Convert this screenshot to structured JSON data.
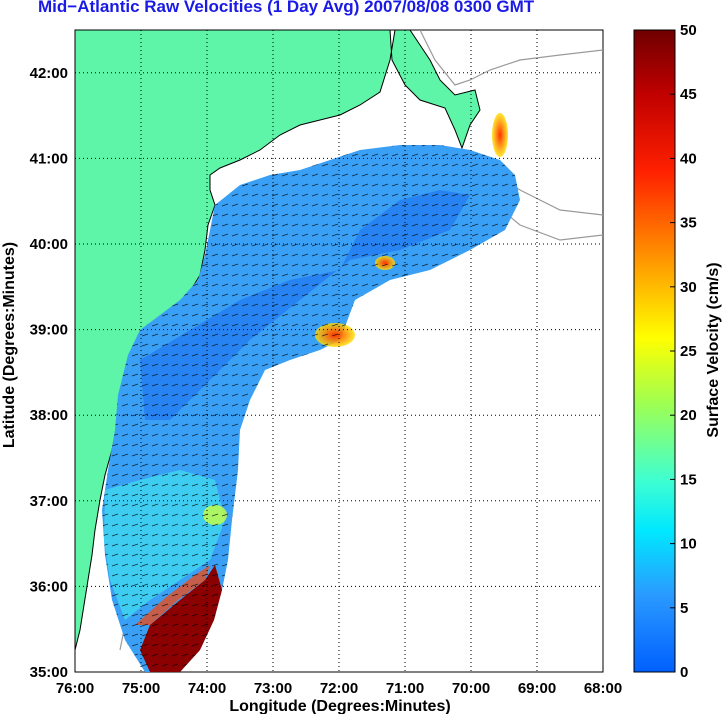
{
  "title": "Mid−Atlantic Raw Velocities (1 Day Avg) 2007/08/08 0300 GMT",
  "chart_data": {
    "type": "heatmap",
    "xlabel": "Longitude (Degrees:Minutes)",
    "ylabel": "Latitude (Degrees:Minutes)",
    "xlim": [
      -76,
      -68
    ],
    "ylim": [
      35,
      42.5
    ],
    "x_tick_labels": [
      "76:00",
      "75:00",
      "74:00",
      "73:00",
      "72:00",
      "71:00",
      "70:00",
      "69:00",
      "68:00"
    ],
    "y_tick_labels": [
      "35:00",
      "36:00",
      "37:00",
      "38:00",
      "39:00",
      "40:00",
      "41:00",
      "42:00"
    ],
    "grid": true,
    "colorbar": {
      "label": "Surface Velocity (cm/s)",
      "min": 0,
      "max": 50,
      "tick_labels": [
        "0",
        "5",
        "10",
        "15",
        "20",
        "25",
        "30",
        "35",
        "40",
        "45",
        "50"
      ],
      "colormap": "jet"
    },
    "land_color": "#5ef5a8"
  }
}
